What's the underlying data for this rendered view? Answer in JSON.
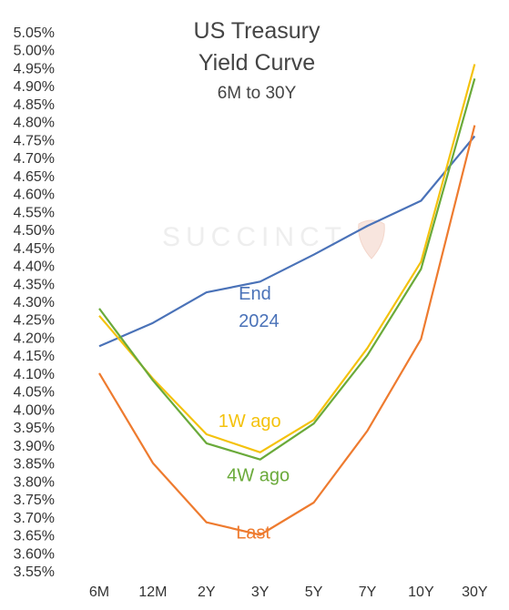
{
  "chart_data": {
    "type": "line",
    "title": "US Treasury",
    "title_line2": "Yield Curve",
    "subtitle": "6M to 30Y",
    "watermark": "SUCCINCT",
    "categories": [
      "6M",
      "12M",
      "2Y",
      "3Y",
      "5Y",
      "7Y",
      "10Y",
      "30Y"
    ],
    "ylim": [
      3.55,
      5.05
    ],
    "y_ticks": [
      "5.05%",
      "5.00%",
      "4.95%",
      "4.90%",
      "4.85%",
      "4.80%",
      "4.75%",
      "4.70%",
      "4.65%",
      "4.60%",
      "4.55%",
      "4.50%",
      "4.45%",
      "4.40%",
      "4.35%",
      "4.30%",
      "4.25%",
      "4.20%",
      "4.15%",
      "4.10%",
      "4.05%",
      "4.00%",
      "3.95%",
      "3.90%",
      "3.85%",
      "3.80%",
      "3.75%",
      "3.70%",
      "3.65%",
      "3.60%",
      "3.55%"
    ],
    "grid": false,
    "series": [
      {
        "name": "End 2024",
        "label_lines": [
          "End",
          "2024"
        ],
        "color": "#4a72b8",
        "values": [
          4.175,
          4.24,
          4.325,
          4.355,
          4.43,
          4.51,
          4.58,
          4.76
        ]
      },
      {
        "name": "1W ago",
        "label_lines": [
          "1W ago"
        ],
        "color": "#f4c20d",
        "values": [
          4.26,
          4.085,
          3.93,
          3.88,
          3.97,
          4.17,
          4.41,
          4.96
        ]
      },
      {
        "name": "4W ago",
        "label_lines": [
          "4W ago"
        ],
        "color": "#6aaa3a",
        "values": [
          4.28,
          4.08,
          3.905,
          3.86,
          3.96,
          4.15,
          4.39,
          4.92
        ]
      },
      {
        "name": "Last",
        "label_lines": [
          "Last"
        ],
        "color": "#ee7b2f",
        "values": [
          4.1,
          3.85,
          3.685,
          3.65,
          3.74,
          3.94,
          4.195,
          4.79
        ]
      }
    ]
  }
}
